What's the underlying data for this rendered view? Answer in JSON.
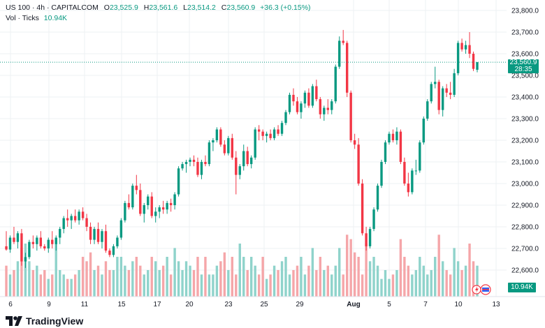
{
  "header": {
    "symbol": "US 100 · 4h · CAPITALCOM",
    "o_label": "O",
    "o_value": "23,525.9",
    "h_label": "H",
    "h_value": "23,561.6",
    "l_label": "L",
    "l_value": "23,514.2",
    "c_label": "C",
    "c_value": "23,560.9",
    "change": "+36.3 (+0.15%)",
    "vol_label": "Vol · Ticks",
    "vol_value": "10.94K"
  },
  "price_badge": {
    "price": "23,560.9",
    "countdown": "28:35"
  },
  "volume_badge": "10.94K",
  "brand": "TradingView",
  "colors": {
    "up": "#089981",
    "down": "#F23645",
    "up_vol": "#8FD3CB",
    "down_vol": "#F5A6A9",
    "grid": "#EEF0F3"
  },
  "chart_data": {
    "type": "candlestick",
    "symbol": "US 100",
    "interval": "4h",
    "y_axis": {
      "ticks": [
        "23,800.0",
        "23,700.0",
        "23,600.0",
        "23,500.0",
        "23,400.0",
        "23,300.0",
        "23,200.0",
        "23,100.0",
        "23,000.0",
        "22,900.0",
        "22,800.0",
        "22,700.0",
        "22,600.0"
      ],
      "range": [
        22540,
        23810
      ]
    },
    "x_axis": {
      "ticks": [
        "6",
        "9",
        "11",
        "15",
        "17",
        "20",
        "23",
        "25",
        "29",
        "Aug",
        "5",
        "7",
        "10",
        "13"
      ]
    },
    "last_price": 23560.9,
    "volume_last": "10.94K",
    "ohlcv": [
      [
        22710,
        22780,
        22690,
        22695,
        35
      ],
      [
        22695,
        22760,
        22680,
        22750,
        25
      ],
      [
        22750,
        22800,
        22720,
        22730,
        30
      ],
      [
        22730,
        22780,
        22700,
        22770,
        40
      ],
      [
        22770,
        22790,
        22620,
        22640,
        55
      ],
      [
        22640,
        22680,
        22610,
        22660,
        60
      ],
      [
        22660,
        22740,
        22650,
        22730,
        40
      ],
      [
        22730,
        22760,
        22700,
        22720,
        30
      ],
      [
        22720,
        22760,
        22690,
        22750,
        35
      ],
      [
        22750,
        22780,
        22700,
        22710,
        25
      ],
      [
        22710,
        22720,
        22690,
        22700,
        30
      ],
      [
        22700,
        22750,
        22680,
        22740,
        20
      ],
      [
        22740,
        22780,
        22700,
        22720,
        25
      ],
      [
        22720,
        22760,
        22690,
        22750,
        60
      ],
      [
        22750,
        22800,
        22720,
        22790,
        30
      ],
      [
        22790,
        22850,
        22770,
        22840,
        25
      ],
      [
        22840,
        22880,
        22800,
        22830,
        20
      ],
      [
        22830,
        22860,
        22790,
        22850,
        20
      ],
      [
        22850,
        22880,
        22820,
        22830,
        25
      ],
      [
        22830,
        22880,
        22810,
        22870,
        30
      ],
      [
        22870,
        22890,
        22830,
        22840,
        45
      ],
      [
        22840,
        22860,
        22780,
        22800,
        40
      ],
      [
        22800,
        22820,
        22720,
        22740,
        50
      ],
      [
        22740,
        22800,
        22720,
        22790,
        30
      ],
      [
        22790,
        22820,
        22720,
        22730,
        35
      ],
      [
        22730,
        22790,
        22700,
        22780,
        25
      ],
      [
        22780,
        22810,
        22680,
        22690,
        40
      ],
      [
        22690,
        22700,
        22660,
        22670,
        30
      ],
      [
        22670,
        22720,
        22660,
        22710,
        30
      ],
      [
        22710,
        22760,
        22700,
        22750,
        45
      ],
      [
        22750,
        22840,
        22740,
        22830,
        45
      ],
      [
        22830,
        22920,
        22820,
        22910,
        35
      ],
      [
        22910,
        22950,
        22880,
        22890,
        30
      ],
      [
        22890,
        23000,
        22880,
        22990,
        40
      ],
      [
        22990,
        23040,
        22950,
        22970,
        45
      ],
      [
        22970,
        23000,
        22850,
        22860,
        35
      ],
      [
        22860,
        22910,
        22820,
        22900,
        25
      ],
      [
        22900,
        22950,
        22880,
        22940,
        30
      ],
      [
        22940,
        22960,
        22840,
        22850,
        45
      ],
      [
        22850,
        22890,
        22820,
        22870,
        40
      ],
      [
        22870,
        22900,
        22840,
        22890,
        30
      ],
      [
        22890,
        22920,
        22860,
        22880,
        35
      ],
      [
        22880,
        22920,
        22860,
        22910,
        45
      ],
      [
        22910,
        22930,
        22870,
        22900,
        25
      ],
      [
        22900,
        22960,
        22880,
        22950,
        55
      ],
      [
        22950,
        23080,
        22940,
        23070,
        40
      ],
      [
        23070,
        23100,
        23060,
        23090,
        30
      ],
      [
        23090,
        23110,
        23050,
        23100,
        40
      ],
      [
        23100,
        23120,
        23080,
        23110,
        35
      ],
      [
        23110,
        23130,
        23080,
        23100,
        30
      ],
      [
        23100,
        23120,
        23030,
        23040,
        45
      ],
      [
        23040,
        23110,
        23020,
        23100,
        25
      ],
      [
        23100,
        23130,
        23080,
        23090,
        45
      ],
      [
        23090,
        23200,
        23080,
        23190,
        25
      ],
      [
        23190,
        23210,
        23150,
        23200,
        25
      ],
      [
        23200,
        23260,
        23190,
        23250,
        35
      ],
      [
        23250,
        23260,
        23170,
        23180,
        40
      ],
      [
        23180,
        23200,
        23130,
        23140,
        50
      ],
      [
        23140,
        23220,
        23130,
        23210,
        30
      ],
      [
        23210,
        23230,
        23110,
        23120,
        45
      ],
      [
        23120,
        23150,
        22950,
        23040,
        25
      ],
      [
        23040,
        23090,
        23020,
        23080,
        60
      ],
      [
        23080,
        23180,
        23060,
        23150,
        45
      ],
      [
        23150,
        23170,
        23080,
        23090,
        30
      ],
      [
        23090,
        23130,
        23070,
        23120,
        45
      ],
      [
        23120,
        23260,
        23110,
        23250,
        35
      ],
      [
        23250,
        23270,
        23200,
        23240,
        25
      ],
      [
        23240,
        23250,
        23200,
        23220,
        45
      ],
      [
        23220,
        23240,
        23190,
        23230,
        20
      ],
      [
        23230,
        23250,
        23200,
        23210,
        25
      ],
      [
        23210,
        23260,
        23200,
        23250,
        35
      ],
      [
        23250,
        23270,
        23220,
        23230,
        30
      ],
      [
        23230,
        23290,
        23220,
        23280,
        40
      ],
      [
        23280,
        23340,
        23270,
        23330,
        45
      ],
      [
        23330,
        23420,
        23320,
        23410,
        25
      ],
      [
        23410,
        23440,
        23360,
        23380,
        30
      ],
      [
        23380,
        23400,
        23320,
        23330,
        35
      ],
      [
        23330,
        23380,
        23300,
        23370,
        45
      ],
      [
        23370,
        23430,
        23350,
        23420,
        25
      ],
      [
        23420,
        23440,
        23350,
        23360,
        35
      ],
      [
        23360,
        23460,
        23350,
        23450,
        55
      ],
      [
        23450,
        23480,
        23380,
        23390,
        30
      ],
      [
        23390,
        23400,
        23300,
        23320,
        45
      ],
      [
        23320,
        23360,
        23290,
        23350,
        30
      ],
      [
        23350,
        23390,
        23320,
        23340,
        35
      ],
      [
        23340,
        23390,
        23320,
        23380,
        25
      ],
      [
        23380,
        23550,
        23370,
        23540,
        35
      ],
      [
        23540,
        23680,
        23530,
        23660,
        55
      ],
      [
        23660,
        23710,
        23640,
        23650,
        25
      ],
      [
        23650,
        23660,
        23400,
        23420,
        70
      ],
      [
        23420,
        23430,
        23190,
        23200,
        65
      ],
      [
        23200,
        23230,
        23160,
        23180,
        50
      ],
      [
        23180,
        23210,
        22990,
        23000,
        45
      ],
      [
        23000,
        23020,
        22760,
        22770,
        25
      ],
      [
        22770,
        22800,
        22690,
        22710,
        60
      ],
      [
        22710,
        22800,
        22700,
        22790,
        40
      ],
      [
        22790,
        22890,
        22780,
        22880,
        45
      ],
      [
        22880,
        23000,
        22870,
        22990,
        35
      ],
      [
        22990,
        23110,
        22980,
        23100,
        20
      ],
      [
        23100,
        23200,
        23090,
        23190,
        30
      ],
      [
        23190,
        23240,
        23180,
        23230,
        20
      ],
      [
        23230,
        23250,
        23190,
        23200,
        25
      ],
      [
        23200,
        23260,
        23180,
        23240,
        30
      ],
      [
        23240,
        23250,
        23090,
        23100,
        65
      ],
      [
        23100,
        23120,
        22990,
        23000,
        45
      ],
      [
        23000,
        23050,
        22940,
        22960,
        35
      ],
      [
        22960,
        23070,
        22950,
        23060,
        25
      ],
      [
        23060,
        23110,
        23040,
        23060,
        30
      ],
      [
        23060,
        23200,
        23050,
        23190,
        45
      ],
      [
        23190,
        23310,
        23180,
        23300,
        35
      ],
      [
        23300,
        23390,
        23290,
        23380,
        25
      ],
      [
        23380,
        23470,
        23370,
        23460,
        30
      ],
      [
        23460,
        23540,
        23440,
        23470,
        45
      ],
      [
        23470,
        23480,
        23320,
        23340,
        70
      ],
      [
        23340,
        23450,
        23310,
        23440,
        40
      ],
      [
        23440,
        23460,
        23400,
        23420,
        30
      ],
      [
        23420,
        23470,
        23390,
        23410,
        25
      ],
      [
        23410,
        23530,
        23400,
        23510,
        55
      ],
      [
        23510,
        23660,
        23500,
        23650,
        40
      ],
      [
        23650,
        23670,
        23610,
        23620,
        30
      ],
      [
        23620,
        23660,
        23600,
        23640,
        35
      ],
      [
        23640,
        23700,
        23580,
        23600,
        60
      ],
      [
        23600,
        23610,
        23520,
        23530,
        40
      ],
      [
        23525.9,
        23561.6,
        23514.2,
        23560.9,
        35
      ]
    ]
  }
}
